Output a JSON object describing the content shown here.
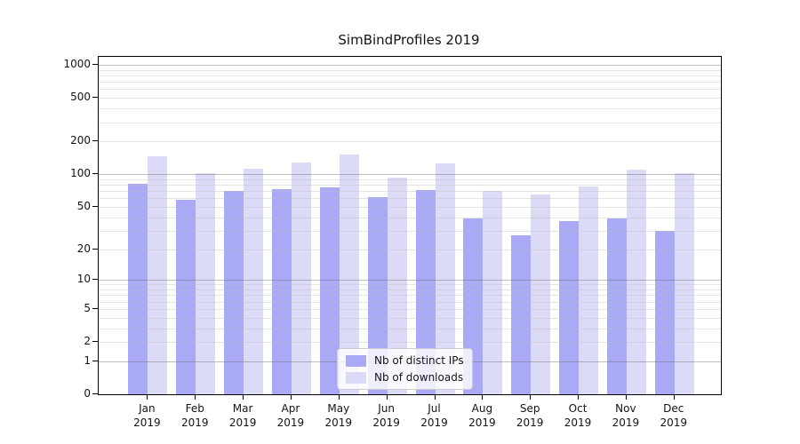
{
  "title": "SimBindProfiles 2019",
  "chart_data": {
    "type": "bar",
    "title": "SimBindProfiles 2019",
    "categories": [
      "Jan 2019",
      "Feb 2019",
      "Mar 2019",
      "Apr 2019",
      "May 2019",
      "Jun 2019",
      "Jul 2019",
      "Aug 2019",
      "Sep 2019",
      "Oct 2019",
      "Nov 2019",
      "Dec 2019"
    ],
    "series": [
      {
        "name": "Nb of distinct IPs",
        "color": "#a9a9f5",
        "values": [
          81,
          58,
          70,
          73,
          76,
          61,
          72,
          39,
          27,
          37,
          39,
          30
        ]
      },
      {
        "name": "Nb of downloads",
        "color": "#dbdbf8",
        "values": [
          145,
          102,
          113,
          129,
          151,
          93,
          125,
          70,
          65,
          77,
          111,
          102
        ]
      }
    ],
    "xlabel": "",
    "ylabel": "",
    "y_axis": {
      "scale": "log10(value+1)",
      "tick_values": [
        1000,
        500,
        200,
        100,
        50,
        20,
        10,
        5,
        2,
        1,
        0
      ],
      "major_gridlines": [
        1,
        10,
        100,
        1000
      ],
      "minor_gridlines": [
        2,
        3,
        4,
        5,
        6,
        7,
        8,
        9,
        20,
        30,
        40,
        50,
        60,
        70,
        80,
        90,
        200,
        300,
        400,
        500,
        600,
        700,
        800,
        900
      ],
      "ylim": [
        0,
        1180
      ]
    },
    "grid": "on, drawn over bars",
    "legend_position": "lower center"
  }
}
